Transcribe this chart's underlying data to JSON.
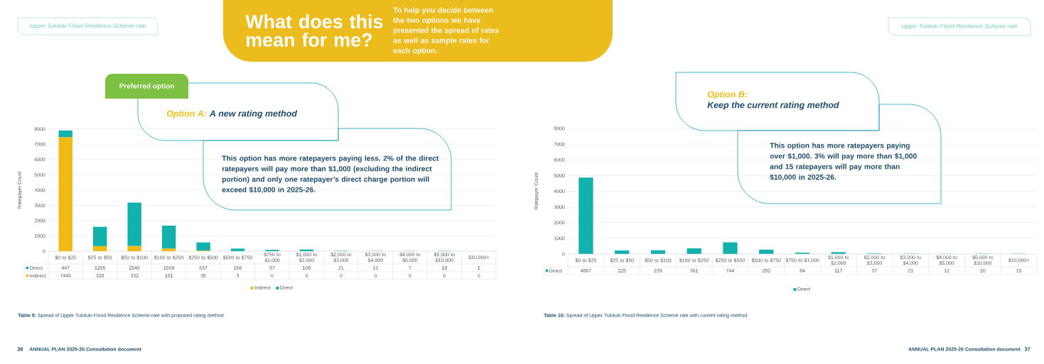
{
  "chart_data": [
    {
      "type": "bar",
      "title": "Option A:",
      "subtitle": "A new rating method",
      "ylabel": "Ratepayer Count",
      "categories": [
        "$0 to $25",
        "$25 to $50",
        "$50 to $100",
        "$100 to $250",
        "$250 to $500",
        "$500 to $750",
        "$750 to $1,000",
        "$1,000 to $2,000",
        "$2,000 to $3,000",
        "$3,000 to $4,000",
        "$4,000 to $5,000",
        "$5,000 to $10,000",
        "$10,000+"
      ],
      "series": [
        {
          "name": "Indirect",
          "color": "#f0b913",
          "values": [
            7446,
            329,
            332,
            161,
            35,
            3,
            0,
            0,
            0,
            0,
            0,
            0,
            0
          ]
        },
        {
          "name": "Direct",
          "color": "#12b1ad",
          "values": [
            447,
            1265,
            2846,
            1509,
            537,
            166,
            87,
            108,
            21,
            12,
            7,
            18,
            1
          ]
        }
      ],
      "stacked": true,
      "ylim": [
        0,
        8000
      ],
      "yticks": [
        0,
        1000,
        2000,
        3000,
        4000,
        5000,
        6000,
        7000,
        8000
      ],
      "grid": "y",
      "legend": "bottom",
      "data_labels": true,
      "annotations": [
        "Upper Tukituki Flood Resilience Scheme rate",
        "What does this mean for me?",
        "To help you decide between the two options we have presented the spread of rates as well as sample rates for each option.",
        "Preferred option",
        "This option has more ratepayers paying less. 2% of the direct ratepayers will pay more than $1,000 (excluding the indirect portion) and only one ratepayer’s direct charge portion will exceed $10,000 in 2025-26.",
        "**Table 9:** Spread of Upper Tukituki Flood Resilience Scheme rate with proposed rating method",
        "36",
        "ANNUAL PLAN 2025-26 Consultation document"
      ]
    },
    {
      "type": "bar",
      "title": "Option B:",
      "subtitle": "Keep the current rating method",
      "ylabel": "Ratepayer Count",
      "categories": [
        "$0 to $25",
        "$25 to $50",
        "$50 to $100",
        "$100 to $250",
        "$250 to $500",
        "$500 to $750",
        "$750 to $1,000",
        "$1,000 to $2,000",
        "$2,000 to $3,000",
        "$3,000 to $4,000",
        "$4,000 to $5,000",
        "$5,000 to $10,000",
        "$10,000+"
      ],
      "series": [
        {
          "name": "Direct",
          "color": "#12b1ad",
          "values": [
            4867,
            225,
            239,
            361,
            744,
            282,
            84,
            117,
            37,
            21,
            12,
            20,
            15
          ]
        }
      ],
      "ylim": [
        0,
        8000
      ],
      "yticks": [
        0,
        1000,
        2000,
        3000,
        4000,
        5000,
        6000,
        7000,
        8000
      ],
      "grid": "y",
      "legend": "bottom",
      "data_labels": true,
      "annotations": [
        "Upper Tukituki Flood Resilience Scheme rate",
        "This option has more ratepayers paying over $1,000. 3% will pay more than $1,000 and 15 ratepayers will pay more than $10,000 in 2025-26.",
        "**Table 10:** Spread of Upper Tukituki Flood Resilience Scheme rate with current rating method",
        "ANNUAL PLAN 2025-26 Consultation document",
        "37"
      ]
    }
  ]
}
